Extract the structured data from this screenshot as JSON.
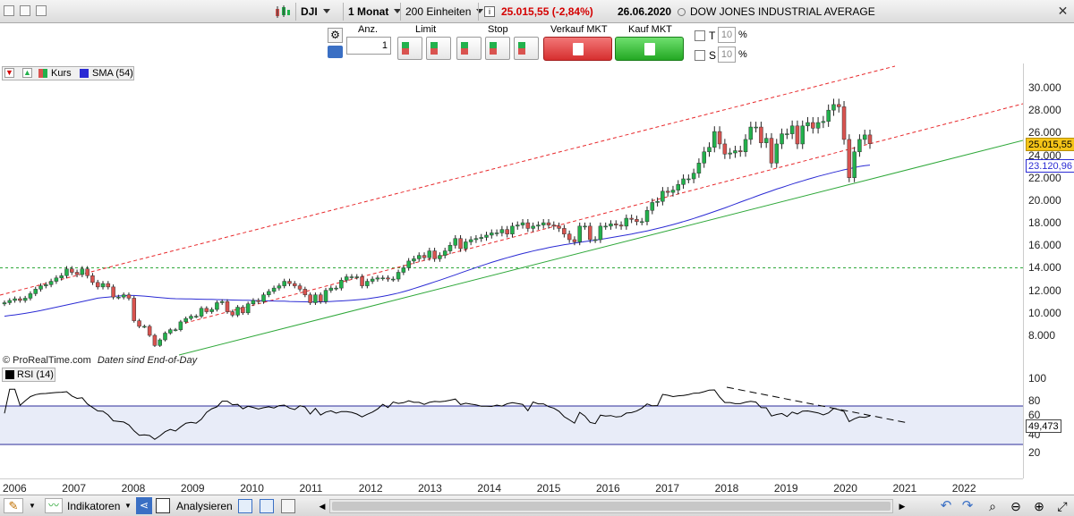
{
  "toolbar": {
    "symbol": "DJI",
    "interval": "1 Monat",
    "units": "200 Einheiten",
    "price_change": "25.015,55 (-2,84%)",
    "date": "26.06.2020",
    "instrument_name": "DOW JONES INDUSTRIAL AVERAGE"
  },
  "order": {
    "qty_label": "Anz.",
    "qty_value": "1",
    "limit_label": "Limit",
    "stop_label": "Stop",
    "sell_label": "Verkauf MKT",
    "buy_label": "Kauf MKT",
    "t_label": "T",
    "t_value": "10",
    "s_label": "S",
    "s_value": "10",
    "percent": "%"
  },
  "legend": {
    "kurs": "Kurs",
    "sma": "SMA (54)",
    "rsi": "RSI (14)"
  },
  "credits": {
    "provider": "© ProRealTime.com",
    "note": "Daten sind End-of-Day"
  },
  "price_tags": {
    "last": "25.015,55",
    "sma": "23.120,96",
    "rsi": "49,473"
  },
  "bottom": {
    "indicators": "Indikatoren",
    "analyze": "Analysieren"
  },
  "colors": {
    "up": "#22b14c",
    "down": "#d9534f",
    "sma": "#2b2bd4",
    "channel": "#e8292c",
    "trend": "#2fa83a"
  },
  "chart_data": {
    "type": "candlestick",
    "title": "",
    "instrument": "DOW JONES INDUSTRIAL AVERAGE",
    "x_years": [
      "2006",
      "2007",
      "2008",
      "2009",
      "2010",
      "2011",
      "2012",
      "2013",
      "2014",
      "2015",
      "2016",
      "2017",
      "2018",
      "2019",
      "2020",
      "2021",
      "2022"
    ],
    "y_ticks": [
      "30.000",
      "28.000",
      "26.000",
      "24.000",
      "22.000",
      "20.000",
      "18.000",
      "16.000",
      "14.000",
      "12.000",
      "10.000",
      "8.000"
    ],
    "ylim": [
      6500,
      31500
    ],
    "closes": [
      10900,
      11100,
      11250,
      11100,
      11300,
      11700,
      12100,
      12400,
      12500,
      12800,
      13100,
      13300,
      13900,
      13600,
      13400,
      13900,
      13300,
      12700,
      12300,
      12600,
      12300,
      11400,
      11400,
      11600,
      11300,
      9300,
      8800,
      8800,
      8000,
      7100,
      7600,
      8200,
      8500,
      8500,
      9200,
      9500,
      9700,
      9700,
      10400,
      10100,
      10300,
      10900,
      11000,
      10100,
      9800,
      10500,
      10000,
      10800,
      11100,
      11000,
      11600,
      11900,
      12200,
      12400,
      12800,
      12600,
      12400,
      12100,
      11600,
      10900,
      11600,
      11000,
      12000,
      12200,
      12200,
      12900,
      13200,
      13200,
      13200,
      12400,
      12800,
      13000,
      13100,
      13100,
      13000,
      13000,
      13600,
      14000,
      14600,
      14800,
      15100,
      14900,
      15500,
      14800,
      15100,
      15500,
      16000,
      16600,
      15700,
      16300,
      16500,
      16600,
      16700,
      16900,
      17100,
      17100,
      17400,
      17000,
      17700,
      17800,
      18000,
      17500,
      17700,
      17800,
      18000,
      17800,
      17700,
      17500,
      17000,
      16500,
      16300,
      17700,
      17700,
      16500,
      16500,
      17700,
      17700,
      17900,
      17800,
      17700,
      18400,
      18300,
      18100,
      18100,
      19100,
      19800,
      19900,
      20800,
      20700,
      20900,
      21400,
      21900,
      21900,
      22400,
      23300,
      24300,
      24700,
      26100,
      25000,
      24100,
      24200,
      24400,
      24300,
      25400,
      26500,
      26500,
      25100,
      25500,
      23300,
      25000,
      25900,
      25900,
      26600,
      25000,
      26600,
      26900,
      26400,
      26900,
      27000,
      28000,
      28500,
      28300,
      25400,
      22000,
      24300,
      25400,
      25800,
      25016
    ],
    "sma": [
      9700,
      9760,
      9820,
      9880,
      9950,
      10030,
      10110,
      10200,
      10300,
      10400,
      10500,
      10600,
      10700,
      10800,
      10900,
      11000,
      11100,
      11200,
      11300,
      11350,
      11400,
      11450,
      11500,
      11520,
      11540,
      11540,
      11520,
      11490,
      11450,
      11400,
      11350,
      11310,
      11280,
      11260,
      11250,
      11240,
      11230,
      11220,
      11210,
      11200,
      11190,
      11180,
      11170,
      11150,
      11140,
      11130,
      11120,
      11110,
      11100,
      11080,
      11070,
      11060,
      11050,
      11040,
      11030,
      11010,
      11000,
      10990,
      10980,
      10970,
      10970,
      10980,
      10990,
      11010,
      11030,
      11060,
      11090,
      11120,
      11160,
      11200,
      11250,
      11310,
      11380,
      11460,
      11550,
      11650,
      11760,
      11880,
      12010,
      12150,
      12300,
      12450,
      12600,
      12750,
      12900,
      13060,
      13220,
      13380,
      13540,
      13700,
      13860,
      14020,
      14180,
      14330,
      14480,
      14620,
      14760,
      14890,
      15020,
      15150,
      15270,
      15380,
      15490,
      15590,
      15690,
      15790,
      15880,
      15970,
      16050,
      16120,
      16190,
      16260,
      16330,
      16390,
      16460,
      16530,
      16600,
      16680,
      16760,
      16840,
      16920,
      17000,
      17090,
      17180,
      17280,
      17380,
      17490,
      17600,
      17720,
      17840,
      17970,
      18100,
      18240,
      18380,
      18530,
      18680,
      18840,
      19000,
      19160,
      19320,
      19490,
      19660,
      19830,
      20000,
      20170,
      20340,
      20510,
      20670,
      20830,
      20990,
      21140,
      21290,
      21440,
      21580,
      21720,
      21860,
      21990,
      22120,
      22240,
      22360,
      22480,
      22590,
      22700,
      22800,
      22900,
      23000,
      23070,
      23120
    ]
  }
}
